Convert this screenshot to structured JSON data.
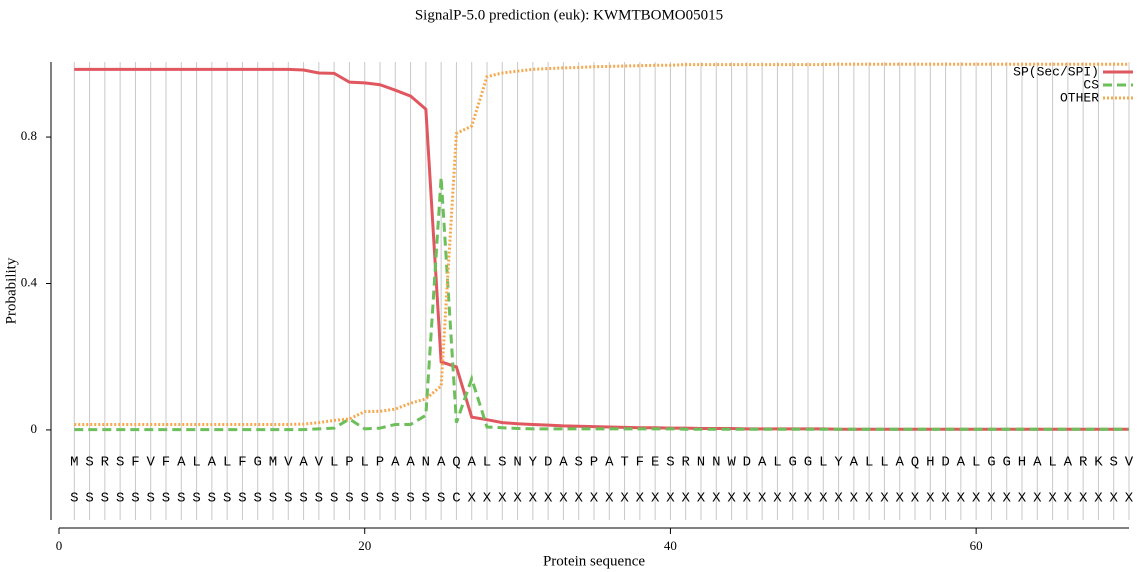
{
  "chart_data": {
    "type": "line",
    "title": "SignalP-5.0 prediction (euk):  KWMTBOMO05015",
    "xlabel": "Protein sequence",
    "ylabel": "Probability",
    "x": [
      1,
      2,
      3,
      4,
      5,
      6,
      7,
      8,
      9,
      10,
      11,
      12,
      13,
      14,
      15,
      16,
      17,
      18,
      19,
      20,
      21,
      22,
      23,
      24,
      25,
      26,
      27,
      28,
      29,
      30,
      31,
      32,
      33,
      34,
      35,
      36,
      37,
      38,
      39,
      40,
      41,
      42,
      43,
      44,
      45,
      46,
      47,
      48,
      49,
      50,
      51,
      52,
      53,
      54,
      55,
      56,
      57,
      58,
      59,
      60,
      61,
      62,
      63,
      64,
      65,
      66,
      67,
      68,
      69,
      70
    ],
    "residues": [
      "M",
      "S",
      "R",
      "S",
      "F",
      "V",
      "F",
      "A",
      "L",
      "A",
      "L",
      "F",
      "G",
      "M",
      "V",
      "A",
      "V",
      "L",
      "P",
      "L",
      "P",
      "A",
      "A",
      "N",
      "A",
      "Q",
      "A",
      "L",
      "S",
      "N",
      "Y",
      "D",
      "A",
      "S",
      "P",
      "A",
      "T",
      "F",
      "E",
      "S",
      "R",
      "N",
      "N",
      "W",
      "D",
      "A",
      "L",
      "G",
      "G",
      "L",
      "Y",
      "A",
      "L",
      "L",
      "A",
      "Q",
      "H",
      "D",
      "A",
      "L",
      "G",
      "G",
      "H",
      "A",
      "L",
      "A",
      "R",
      "K",
      "S",
      "V"
    ],
    "annotations": [
      "S",
      "S",
      "S",
      "S",
      "S",
      "S",
      "S",
      "S",
      "S",
      "S",
      "S",
      "S",
      "S",
      "S",
      "S",
      "S",
      "S",
      "S",
      "S",
      "S",
      "S",
      "S",
      "S",
      "S",
      "S",
      "C",
      "X",
      "X",
      "X",
      "X",
      "X",
      "X",
      "X",
      "X",
      "X",
      "X",
      "X",
      "X",
      "X",
      "X",
      "X",
      "X",
      "X",
      "X",
      "X",
      "X",
      "X",
      "X",
      "X",
      "X",
      "X",
      "X",
      "X",
      "X",
      "X",
      "X",
      "X",
      "X",
      "X",
      "X",
      "X",
      "X",
      "X",
      "X",
      "X",
      "X",
      "X",
      "X",
      "X",
      "X"
    ],
    "series": [
      {
        "name": "SP(Sec/SPI)",
        "color": "#e0575f",
        "linestyle": "solid",
        "values": [
          0.985,
          0.985,
          0.985,
          0.985,
          0.985,
          0.985,
          0.985,
          0.985,
          0.985,
          0.985,
          0.985,
          0.985,
          0.985,
          0.985,
          0.985,
          0.983,
          0.975,
          0.974,
          0.95,
          0.948,
          0.943,
          0.928,
          0.912,
          0.876,
          0.186,
          0.172,
          0.035,
          0.028,
          0.02,
          0.017,
          0.015,
          0.013,
          0.011,
          0.01,
          0.009,
          0.008,
          0.007,
          0.006,
          0.006,
          0.005,
          0.005,
          0.004,
          0.004,
          0.004,
          0.003,
          0.003,
          0.003,
          0.003,
          0.003,
          0.003,
          0.002,
          0.002,
          0.002,
          0.002,
          0.002,
          0.002,
          0.002,
          0.002,
          0.002,
          0.002,
          0.002,
          0.002,
          0.002,
          0.002,
          0.002,
          0.002,
          0.002,
          0.002,
          0.002,
          0.002
        ]
      },
      {
        "name": "CS",
        "color": "#6cbf5a",
        "linestyle": "dashed",
        "values": [
          0.001,
          0.001,
          0.001,
          0.001,
          0.001,
          0.001,
          0.001,
          0.001,
          0.001,
          0.001,
          0.001,
          0.001,
          0.001,
          0.001,
          0.001,
          0.001,
          0.003,
          0.005,
          0.03,
          0.003,
          0.005,
          0.015,
          0.015,
          0.04,
          0.69,
          0.02,
          0.14,
          0.008,
          0.006,
          0.004,
          0.003,
          0.003,
          0.003,
          0.003,
          0.003,
          0.003,
          0.003,
          0.003,
          0.003,
          0.003,
          0.002,
          0.002,
          0.002,
          0.002,
          0.002,
          0.002,
          0.002,
          0.002,
          0.002,
          0.002,
          0.002,
          0.002,
          0.002,
          0.002,
          0.002,
          0.002,
          0.002,
          0.002,
          0.002,
          0.002,
          0.002,
          0.002,
          0.002,
          0.002,
          0.002,
          0.002,
          0.002,
          0.002,
          0.002,
          0.002
        ]
      },
      {
        "name": "OTHER",
        "color": "#f5a84e",
        "linestyle": "dotted",
        "values": [
          0.015,
          0.015,
          0.015,
          0.015,
          0.015,
          0.015,
          0.015,
          0.015,
          0.015,
          0.015,
          0.015,
          0.015,
          0.015,
          0.015,
          0.015,
          0.016,
          0.02,
          0.026,
          0.03,
          0.05,
          0.051,
          0.057,
          0.073,
          0.085,
          0.12,
          0.81,
          0.83,
          0.965,
          0.975,
          0.98,
          0.985,
          0.987,
          0.989,
          0.99,
          0.992,
          0.993,
          0.994,
          0.995,
          0.996,
          0.996,
          0.998,
          0.998,
          0.998,
          0.998,
          0.998,
          0.998,
          0.998,
          0.998,
          0.998,
          0.998,
          0.999,
          0.999,
          0.999,
          0.999,
          0.999,
          0.999,
          0.999,
          0.999,
          0.999,
          0.999,
          0.999,
          0.999,
          0.999,
          0.999,
          0.999,
          0.999,
          0.999,
          0.999,
          0.999,
          0.999
        ]
      }
    ],
    "xlim": [
      0,
      70
    ],
    "xticks": [
      0,
      20,
      40,
      60
    ],
    "ylim": [
      -0.246,
      1.005
    ],
    "yticks": [
      0,
      0.4,
      0.8
    ],
    "legend": "upper right"
  }
}
